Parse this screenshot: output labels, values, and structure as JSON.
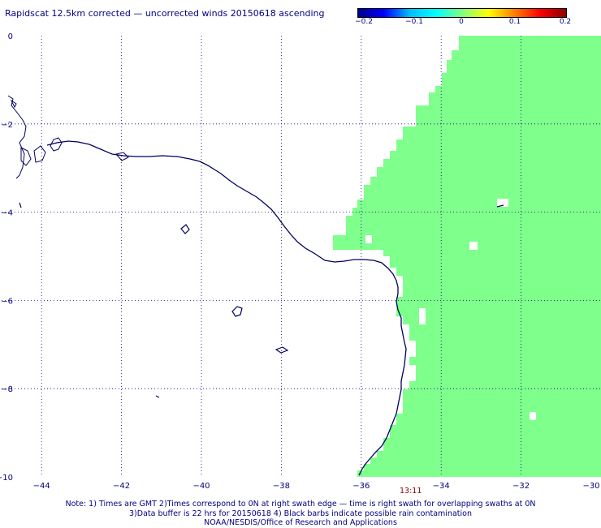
{
  "title": "Rapidscat 12.5km corrected — uncorrected winds 20150618 ascending",
  "colorbar": {
    "ticks": [
      "−0.2",
      "−0.1",
      "0",
      "0.1",
      "0.2"
    ],
    "colors": [
      "#00008b",
      "#0000ff",
      "#00bfff",
      "#00ffff",
      "#7fff7f",
      "#ffff00",
      "#ff8000",
      "#ff0000",
      "#8b0000"
    ]
  },
  "map": {
    "lon_range": [
      -45,
      -30
    ],
    "lat_range": [
      -10,
      0
    ],
    "lon_labels": [
      "−44",
      "−42",
      "−40",
      "−38",
      "−36",
      "−34",
      "−32",
      "−30"
    ],
    "lat_labels": [
      "0",
      "−2",
      "−4",
      "−6",
      "−8",
      "−10"
    ],
    "swath_color": "#7fff8c",
    "coast_color": "#000060",
    "grid": "dotted"
  },
  "time_label": "13:11",
  "notes": [
    "Note: 1) Times are GMT 2)Times correspond to 0N at right swath edge — time is right swath for overlapping swaths at 0N",
    "3)Data buffer is 22 hrs for 20150618 4) Black barbs indicate possible rain contamination",
    "NOAA/NESDIS/Office of Research and Applications"
  ]
}
